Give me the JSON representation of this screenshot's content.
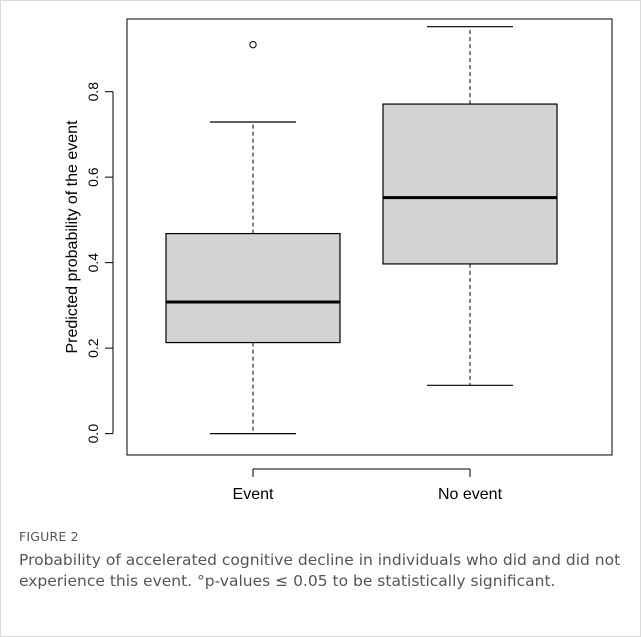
{
  "figure": {
    "label": "FIGURE 2",
    "caption": "Probability of accelerated cognitive decline in individuals who did and did not experience this event. °p-values ≤ 0.05 to be statistically significant."
  },
  "chart_data": {
    "type": "boxplot",
    "ylabel": "Predicted probability of the event",
    "xlabel": "",
    "ylim": [
      -0.05,
      0.97
    ],
    "yticks": [
      "0.0",
      "0.2",
      "0.4",
      "0.6",
      "0.8"
    ],
    "grid": false,
    "categories": [
      "Event",
      "No event"
    ],
    "boxes": [
      {
        "category": "Event",
        "min": 0.0,
        "q1": 0.213,
        "median": 0.308,
        "q3": 0.468,
        "max": 0.729,
        "outliers": [
          0.91
        ]
      },
      {
        "category": "No event",
        "min": 0.113,
        "q1": 0.397,
        "median": 0.552,
        "q3": 0.771,
        "max": 0.952,
        "outliers": []
      }
    ],
    "colors": {
      "box_fill": "#d3d3d3",
      "stroke": "#000000"
    }
  }
}
